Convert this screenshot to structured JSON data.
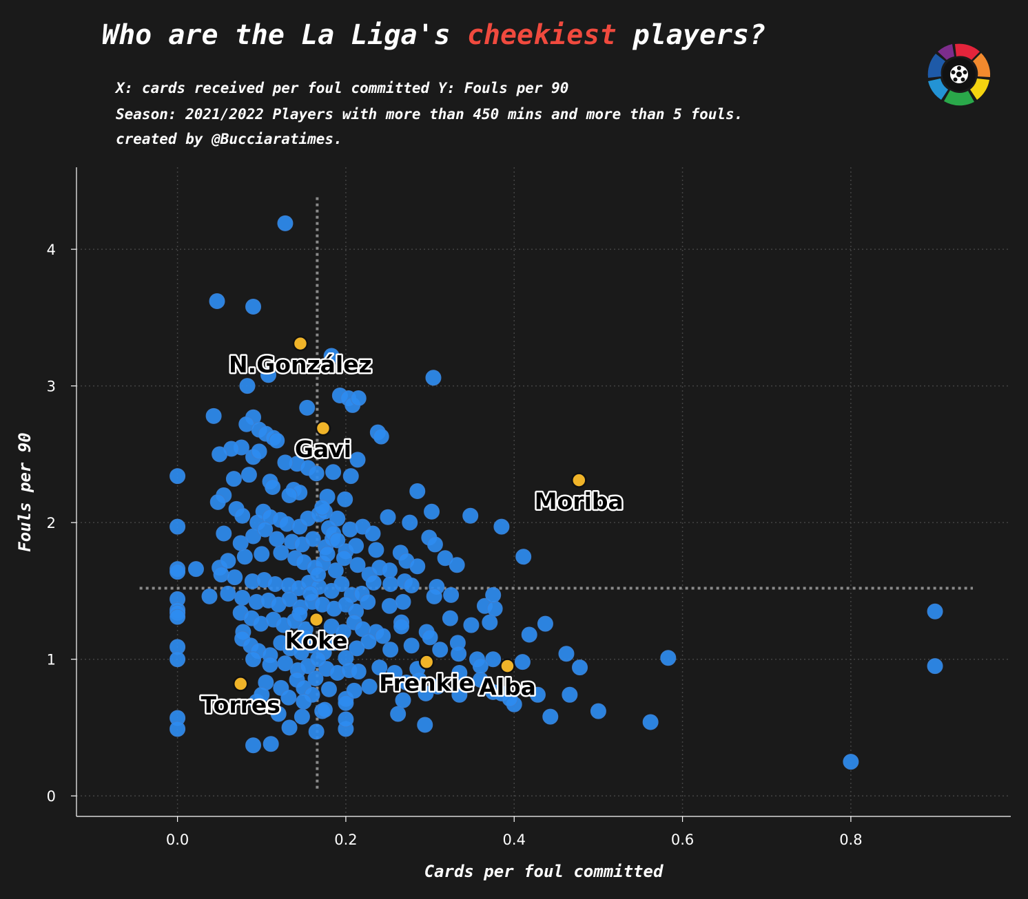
{
  "title": {
    "prefix": "Who are the La Liga's ",
    "highlight": "cheekiest",
    "suffix": " players?",
    "highlight_color": "#f04a3e"
  },
  "subtitle_lines": [
    "X: cards received per foul committed Y: Fouls per 90",
    "Season: 2021/2022 Players with more than 450 mins and more than 5 fouls.",
    "created by @Bucciaratimes."
  ],
  "logo_icon": "laliga-logo-icon",
  "chart_data": {
    "type": "scatter",
    "xlabel": "Cards per foul committed",
    "ylabel": "Fouls per 90",
    "xlim": [
      -0.12,
      0.99
    ],
    "ylim": [
      -0.15,
      4.6
    ],
    "xticks": [
      0.0,
      0.2,
      0.4,
      0.6,
      0.8
    ],
    "yticks": [
      0,
      1,
      2,
      3,
      4
    ],
    "xtick_labels": [
      "0.0",
      "0.2",
      "0.4",
      "0.6",
      "0.8"
    ],
    "ytick_labels": [
      "0",
      "1",
      "2",
      "3",
      "4"
    ],
    "grid": true,
    "mean_x": 0.166,
    "mean_y": 1.52,
    "colors": {
      "points": "#2e8cf0",
      "highlight": "#f0b429",
      "grid": "#444444",
      "mean_lines": "#8a8a8a",
      "background": "#1a1a1a"
    },
    "highlighted": [
      {
        "name": "N.González",
        "x": 0.146,
        "y": 3.31
      },
      {
        "name": "Gavi",
        "x": 0.173,
        "y": 2.69
      },
      {
        "name": "Moriba",
        "x": 0.477,
        "y": 2.31
      },
      {
        "name": "Koke",
        "x": 0.165,
        "y": 1.29
      },
      {
        "name": "Frenkie",
        "x": 0.296,
        "y": 0.98
      },
      {
        "name": "Alba",
        "x": 0.392,
        "y": 0.95
      },
      {
        "name": "Torres",
        "x": 0.075,
        "y": 0.82
      }
    ],
    "points": [
      [
        0.128,
        4.19
      ],
      [
        0.047,
        3.62
      ],
      [
        0.09,
        3.58
      ],
      [
        0.183,
        3.22
      ],
      [
        0.108,
        3.08
      ],
      [
        0.304,
        3.06
      ],
      [
        0.083,
        3.0
      ],
      [
        0.154,
        2.84
      ],
      [
        0.193,
        2.93
      ],
      [
        0.203,
        2.91
      ],
      [
        0.208,
        2.86
      ],
      [
        0.215,
        2.91
      ],
      [
        0.043,
        2.78
      ],
      [
        0.09,
        2.77
      ],
      [
        0.082,
        2.72
      ],
      [
        0.097,
        2.68
      ],
      [
        0.105,
        2.65
      ],
      [
        0.114,
        2.62
      ],
      [
        0.118,
        2.6
      ],
      [
        0.238,
        2.66
      ],
      [
        0.242,
        2.63
      ],
      [
        0.076,
        2.55
      ],
      [
        0.064,
        2.54
      ],
      [
        0.05,
        2.5
      ],
      [
        0.09,
        2.48
      ],
      [
        0.097,
        2.52
      ],
      [
        0.142,
        2.43
      ],
      [
        0.128,
        2.44
      ],
      [
        0.155,
        2.4
      ],
      [
        0.165,
        2.36
      ],
      [
        0.185,
        2.37
      ],
      [
        0.214,
        2.46
      ],
      [
        0.206,
        2.34
      ],
      [
        0.0,
        2.34
      ],
      [
        0.085,
        2.35
      ],
      [
        0.067,
        2.32
      ],
      [
        0.11,
        2.3
      ],
      [
        0.113,
        2.26
      ],
      [
        0.138,
        2.24
      ],
      [
        0.145,
        2.22
      ],
      [
        0.133,
        2.2
      ],
      [
        0.178,
        2.19
      ],
      [
        0.199,
        2.17
      ],
      [
        0.285,
        2.23
      ],
      [
        0.302,
        2.08
      ],
      [
        0.25,
        2.04
      ],
      [
        0.348,
        2.05
      ],
      [
        0.385,
        1.97
      ],
      [
        0.411,
        1.75
      ],
      [
        0.055,
        2.2
      ],
      [
        0.048,
        2.15
      ],
      [
        0.07,
        2.1
      ],
      [
        0.077,
        2.05
      ],
      [
        0.095,
        2.0
      ],
      [
        0.102,
        2.08
      ],
      [
        0.11,
        2.04
      ],
      [
        0.122,
        2.02
      ],
      [
        0.13,
        1.99
      ],
      [
        0.145,
        1.97
      ],
      [
        0.155,
        2.03
      ],
      [
        0.168,
        2.06
      ],
      [
        0.175,
        2.08
      ],
      [
        0.19,
        2.03
      ],
      [
        0.205,
        1.95
      ],
      [
        0.22,
        1.97
      ],
      [
        0.232,
        1.92
      ],
      [
        0.0,
        1.97
      ],
      [
        0.055,
        1.92
      ],
      [
        0.075,
        1.85
      ],
      [
        0.09,
        1.9
      ],
      [
        0.104,
        1.95
      ],
      [
        0.118,
        1.88
      ],
      [
        0.136,
        1.86
      ],
      [
        0.148,
        1.84
      ],
      [
        0.161,
        1.88
      ],
      [
        0.176,
        1.82
      ],
      [
        0.184,
        1.88
      ],
      [
        0.2,
        1.79
      ],
      [
        0.212,
        1.83
      ],
      [
        0.236,
        1.8
      ],
      [
        0.276,
        2.0
      ],
      [
        0.299,
        1.89
      ],
      [
        0.306,
        1.84
      ],
      [
        0.318,
        1.74
      ],
      [
        0.332,
        1.69
      ],
      [
        0.0,
        1.66
      ],
      [
        0.022,
        1.66
      ],
      [
        0.05,
        1.67
      ],
      [
        0.06,
        1.72
      ],
      [
        0.08,
        1.75
      ],
      [
        0.1,
        1.77
      ],
      [
        0.123,
        1.78
      ],
      [
        0.14,
        1.74
      ],
      [
        0.15,
        1.71
      ],
      [
        0.163,
        1.67
      ],
      [
        0.173,
        1.7
      ],
      [
        0.188,
        1.65
      ],
      [
        0.198,
        1.74
      ],
      [
        0.214,
        1.69
      ],
      [
        0.228,
        1.62
      ],
      [
        0.24,
        1.67
      ],
      [
        0.252,
        1.65
      ],
      [
        0.265,
        1.78
      ],
      [
        0.272,
        1.72
      ],
      [
        0.285,
        1.68
      ],
      [
        0.0,
        1.64
      ],
      [
        0.052,
        1.62
      ],
      [
        0.068,
        1.6
      ],
      [
        0.089,
        1.57
      ],
      [
        0.103,
        1.58
      ],
      [
        0.116,
        1.55
      ],
      [
        0.132,
        1.54
      ],
      [
        0.144,
        1.52
      ],
      [
        0.156,
        1.56
      ],
      [
        0.168,
        1.53
      ],
      [
        0.183,
        1.5
      ],
      [
        0.195,
        1.55
      ],
      [
        0.207,
        1.47
      ],
      [
        0.219,
        1.48
      ],
      [
        0.233,
        1.56
      ],
      [
        0.253,
        1.55
      ],
      [
        0.27,
        1.57
      ],
      [
        0.278,
        1.54
      ],
      [
        0.308,
        1.53
      ],
      [
        0.325,
        1.47
      ],
      [
        0.0,
        1.44
      ],
      [
        0.038,
        1.46
      ],
      [
        0.06,
        1.48
      ],
      [
        0.077,
        1.45
      ],
      [
        0.094,
        1.42
      ],
      [
        0.108,
        1.43
      ],
      [
        0.12,
        1.4
      ],
      [
        0.133,
        1.44
      ],
      [
        0.146,
        1.38
      ],
      [
        0.16,
        1.42
      ],
      [
        0.172,
        1.4
      ],
      [
        0.186,
        1.37
      ],
      [
        0.2,
        1.4
      ],
      [
        0.212,
        1.35
      ],
      [
        0.226,
        1.42
      ],
      [
        0.252,
        1.39
      ],
      [
        0.268,
        1.42
      ],
      [
        0.305,
        1.46
      ],
      [
        0.0,
        1.36
      ],
      [
        0.0,
        1.34
      ],
      [
        0.0,
        1.31
      ],
      [
        0.075,
        1.34
      ],
      [
        0.088,
        1.3
      ],
      [
        0.099,
        1.26
      ],
      [
        0.114,
        1.29
      ],
      [
        0.126,
        1.25
      ],
      [
        0.139,
        1.28
      ],
      [
        0.152,
        1.22
      ],
      [
        0.183,
        1.24
      ],
      [
        0.197,
        1.2
      ],
      [
        0.21,
        1.27
      ],
      [
        0.22,
        1.22
      ],
      [
        0.236,
        1.2
      ],
      [
        0.244,
        1.17
      ],
      [
        0.266,
        1.27
      ],
      [
        0.296,
        1.2
      ],
      [
        0.324,
        1.3
      ],
      [
        0.349,
        1.25
      ],
      [
        0.365,
        1.39
      ],
      [
        0.371,
        1.27
      ],
      [
        0.377,
        1.37
      ],
      [
        0.375,
        1.47
      ],
      [
        0.0,
        1.09
      ],
      [
        0.078,
        1.2
      ],
      [
        0.077,
        1.15
      ],
      [
        0.087,
        1.1
      ],
      [
        0.096,
        1.06
      ],
      [
        0.11,
        1.03
      ],
      [
        0.123,
        1.12
      ],
      [
        0.134,
        1.08
      ],
      [
        0.147,
        1.05
      ],
      [
        0.16,
        1.1
      ],
      [
        0.174,
        1.05
      ],
      [
        0.186,
        1.12
      ],
      [
        0.2,
        1.01
      ],
      [
        0.213,
        1.08
      ],
      [
        0.227,
        1.13
      ],
      [
        0.253,
        1.07
      ],
      [
        0.266,
        1.24
      ],
      [
        0.278,
        1.1
      ],
      [
        0.3,
        1.16
      ],
      [
        0.312,
        1.07
      ],
      [
        0.333,
        1.12
      ],
      [
        0.334,
        1.04
      ],
      [
        0.356,
        1.0
      ],
      [
        0.375,
        1.0
      ],
      [
        0.41,
        0.98
      ],
      [
        0.418,
        1.18
      ],
      [
        0.437,
        1.26
      ],
      [
        0.462,
        1.04
      ],
      [
        0.478,
        0.94
      ],
      [
        0.0,
        1.0
      ],
      [
        0.09,
        1.0
      ],
      [
        0.11,
        0.96
      ],
      [
        0.128,
        0.97
      ],
      [
        0.143,
        0.92
      ],
      [
        0.155,
        0.95
      ],
      [
        0.177,
        0.93
      ],
      [
        0.19,
        0.9
      ],
      [
        0.204,
        0.92
      ],
      [
        0.215,
        0.91
      ],
      [
        0.24,
        0.94
      ],
      [
        0.258,
        0.9
      ],
      [
        0.285,
        0.93
      ],
      [
        0.335,
        0.9
      ],
      [
        0.36,
        0.85
      ],
      [
        0.105,
        0.83
      ],
      [
        0.123,
        0.79
      ],
      [
        0.142,
        0.85
      ],
      [
        0.15,
        0.79
      ],
      [
        0.16,
        0.74
      ],
      [
        0.18,
        0.78
      ],
      [
        0.2,
        0.71
      ],
      [
        0.272,
        0.83
      ],
      [
        0.295,
        0.75
      ],
      [
        0.309,
        0.8
      ],
      [
        0.335,
        0.74
      ],
      [
        0.375,
        0.76
      ],
      [
        0.385,
        0.75
      ],
      [
        0.428,
        0.74
      ],
      [
        0.466,
        0.74
      ],
      [
        0.0,
        0.57
      ],
      [
        0.0,
        0.49
      ],
      [
        0.09,
        0.37
      ],
      [
        0.111,
        0.38
      ],
      [
        0.133,
        0.5
      ],
      [
        0.148,
        0.58
      ],
      [
        0.165,
        0.47
      ],
      [
        0.172,
        0.62
      ],
      [
        0.2,
        0.49
      ],
      [
        0.2,
        0.56
      ],
      [
        0.2,
        0.68
      ],
      [
        0.262,
        0.6
      ],
      [
        0.294,
        0.52
      ],
      [
        0.4,
        0.67
      ],
      [
        0.395,
        0.71
      ],
      [
        0.443,
        0.58
      ],
      [
        0.5,
        0.62
      ],
      [
        0.562,
        0.54
      ],
      [
        0.583,
        1.01
      ],
      [
        0.8,
        0.25
      ],
      [
        0.9,
        1.35
      ],
      [
        0.9,
        0.95
      ],
      [
        0.094,
        0.69
      ],
      [
        0.1,
        0.74
      ],
      [
        0.12,
        0.6
      ],
      [
        0.132,
        0.72
      ],
      [
        0.175,
        0.63
      ],
      [
        0.21,
        0.77
      ],
      [
        0.228,
        0.8
      ],
      [
        0.268,
        0.7
      ],
      [
        0.287,
        0.85
      ],
      [
        0.36,
        0.95
      ],
      [
        0.172,
        2.11
      ],
      [
        0.18,
        1.96
      ],
      [
        0.185,
        1.92
      ],
      [
        0.19,
        1.87
      ],
      [
        0.178,
        1.77
      ],
      [
        0.167,
        1.62
      ],
      [
        0.158,
        1.48
      ],
      [
        0.145,
        1.33
      ],
      [
        0.152,
        1.16
      ],
      [
        0.167,
        1.0
      ],
      [
        0.164,
        0.86
      ],
      [
        0.15,
        0.69
      ]
    ]
  }
}
